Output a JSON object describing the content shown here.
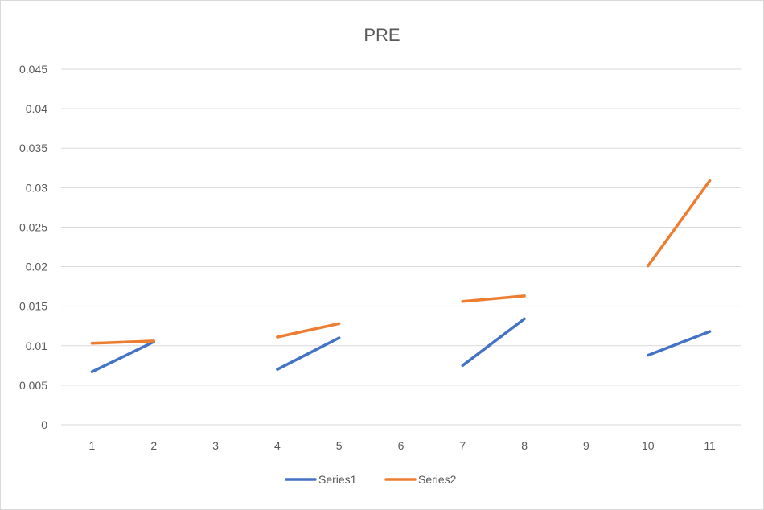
{
  "chart_data": {
    "type": "line",
    "title": "PRE",
    "xlabel": "",
    "ylabel": "",
    "categories": [
      "1",
      "2",
      "3",
      "4",
      "5",
      "6",
      "7",
      "8",
      "9",
      "10",
      "11"
    ],
    "ylim": [
      0,
      0.045
    ],
    "yticks": [
      "0",
      "0.005",
      "0.01",
      "0.015",
      "0.02",
      "0.025",
      "0.03",
      "0.035",
      "0.04",
      "0.045"
    ],
    "grid": true,
    "legend_position": "bottom",
    "series": [
      {
        "name": "Series1",
        "color": "#4472c4",
        "values": [
          0.0067,
          0.0105,
          null,
          0.007,
          0.011,
          null,
          0.0075,
          0.0134,
          null,
          0.0088,
          0.0118
        ]
      },
      {
        "name": "Series2",
        "color": "#ed7d31",
        "values": [
          0.0103,
          0.0106,
          null,
          0.0111,
          0.0128,
          null,
          0.0156,
          0.0163,
          null,
          0.0201,
          0.0309
        ]
      }
    ]
  }
}
